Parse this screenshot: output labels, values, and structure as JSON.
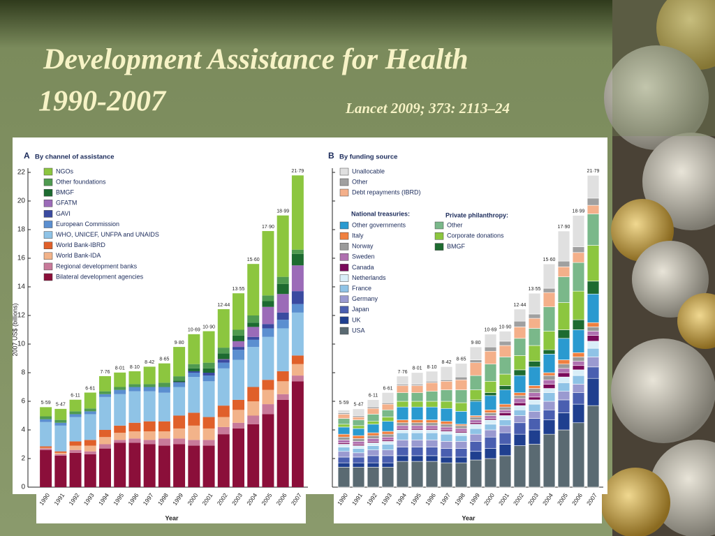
{
  "slide": {
    "title": "Development Assistance for Health",
    "years": "1990-2007",
    "citation": "Lancet 2009; 373: 2113–24"
  },
  "chart_data": [
    {
      "type": "stacked_bar",
      "panel": "A",
      "title": "By channel of assistance",
      "ylabel": "2007 US$ (billions)",
      "xlabel": "Year",
      "categories": [
        "1990",
        "1991",
        "1992",
        "1993",
        "1994",
        "1995",
        "1996",
        "1997",
        "1998",
        "1999",
        "2000",
        "2001",
        "2002",
        "2003",
        "2004",
        "2005",
        "2006",
        "2007"
      ],
      "ylim": [
        0,
        22
      ],
      "yticks": [
        0,
        2,
        4,
        6,
        8,
        10,
        12,
        14,
        16,
        18,
        20,
        22
      ],
      "ytick_labels": true,
      "totals": [
        5.59,
        5.47,
        6.11,
        6.61,
        7.76,
        8.01,
        8.1,
        8.42,
        8.65,
        9.8,
        10.69,
        10.9,
        12.44,
        13.55,
        15.6,
        17.9,
        18.99,
        21.79
      ],
      "total_labels": [
        "5·59",
        "5·47",
        "6·11",
        "6·61",
        "7·76",
        "8·01",
        "8·10",
        "8·42",
        "8·65",
        "9·80",
        "10·69",
        "10·90",
        "12·44",
        "13·55",
        "15·60",
        "17·90",
        "18·99",
        "21·79"
      ],
      "series": [
        {
          "name": "Bilateral development agencies",
          "color": "#8b0f3a",
          "values": [
            2.6,
            2.2,
            2.4,
            2.3,
            2.7,
            3.1,
            3.1,
            3.0,
            2.9,
            3.0,
            2.9,
            2.9,
            3.7,
            4.1,
            4.4,
            5.1,
            6.1,
            7.4
          ]
        },
        {
          "name": "Regional development banks",
          "color": "#c87a9a",
          "values": [
            0.1,
            0.1,
            0.2,
            0.2,
            0.3,
            0.2,
            0.3,
            0.3,
            0.5,
            0.4,
            0.4,
            0.4,
            0.5,
            0.4,
            0.6,
            0.7,
            0.4,
            0.4
          ]
        },
        {
          "name": "World Bank-IDA",
          "color": "#f2b38a",
          "values": [
            0.05,
            0.1,
            0.3,
            0.4,
            0.5,
            0.5,
            0.5,
            0.6,
            0.5,
            0.7,
            1.0,
            0.8,
            0.7,
            0.9,
            1.0,
            1.0,
            0.9,
            0.8
          ]
        },
        {
          "name": "World Bank-IBRD",
          "color": "#e0602a",
          "values": [
            0.1,
            0.1,
            0.3,
            0.4,
            0.5,
            0.5,
            0.6,
            0.7,
            0.7,
            0.9,
            0.9,
            0.8,
            0.8,
            0.7,
            1.0,
            0.7,
            0.7,
            0.6
          ]
        },
        {
          "name": "WHO, UNICEF, UNFPA and UNAIDS",
          "color": "#8fc3e6",
          "values": [
            1.7,
            1.8,
            1.7,
            1.8,
            2.3,
            2.2,
            2.2,
            2.1,
            2.0,
            2.0,
            2.5,
            2.5,
            2.6,
            2.8,
            2.8,
            3.0,
            3.0,
            3.0
          ]
        },
        {
          "name": "European Commission",
          "color": "#5b8fd0",
          "values": [
            0.2,
            0.2,
            0.2,
            0.2,
            0.2,
            0.3,
            0.3,
            0.3,
            0.4,
            0.3,
            0.3,
            0.4,
            0.4,
            0.7,
            0.5,
            0.6,
            0.6,
            0.6
          ]
        },
        {
          "name": "GAVI",
          "color": "#3a4aa0",
          "values": [
            0,
            0,
            0,
            0,
            0,
            0,
            0,
            0,
            0,
            0.05,
            0.1,
            0.2,
            0.2,
            0.2,
            0.2,
            0.3,
            0.5,
            0.9
          ]
        },
        {
          "name": "GFATM",
          "color": "#9b6bb8",
          "values": [
            0,
            0,
            0,
            0,
            0,
            0,
            0,
            0,
            0,
            0,
            0,
            0,
            0.05,
            0.4,
            0.7,
            1.2,
            1.3,
            1.8
          ]
        },
        {
          "name": "BMGF",
          "color": "#1d6b30",
          "values": [
            0,
            0,
            0,
            0,
            0,
            0,
            0,
            0,
            0,
            0.1,
            0.2,
            0.3,
            0.4,
            0.4,
            0.3,
            0.4,
            0.7,
            0.8
          ]
        },
        {
          "name": "Other foundations",
          "color": "#4f9a50",
          "values": [
            0.2,
            0.2,
            0.2,
            0.2,
            0.2,
            0.2,
            0.2,
            0.2,
            0.3,
            0.3,
            0.3,
            0.4,
            0.4,
            0.4,
            0.5,
            0.4,
            0.5,
            0.3
          ]
        },
        {
          "name": "NGOs",
          "color": "#8cc63f",
          "values": [
            0.64,
            0.77,
            0.81,
            1.11,
            1.06,
            1.01,
            0.9,
            1.22,
            1.35,
            2.05,
            2.09,
            2.2,
            2.69,
            2.55,
            3.6,
            4.5,
            4.29,
            5.19
          ]
        }
      ]
    },
    {
      "type": "stacked_bar",
      "panel": "B",
      "title": "By funding source",
      "xlabel": "Year",
      "categories": [
        "1990",
        "1991",
        "1992",
        "1993",
        "1994",
        "1995",
        "1996",
        "1997",
        "1998",
        "1999",
        "2000",
        "2001",
        "2002",
        "2003",
        "2004",
        "2005",
        "2006",
        "2007"
      ],
      "ylim": [
        0,
        22
      ],
      "yticks": [
        0,
        2,
        4,
        6,
        8,
        10,
        12,
        14,
        16,
        18,
        20,
        22
      ],
      "ytick_labels": false,
      "legend_titles": [
        "National treasuries:",
        "Private philanthropy:"
      ],
      "totals": [
        5.59,
        5.47,
        6.11,
        6.61,
        7.76,
        8.01,
        8.1,
        8.42,
        8.65,
        9.8,
        10.69,
        10.9,
        12.44,
        13.55,
        15.6,
        17.9,
        18.99,
        21.79
      ],
      "total_labels": [
        "5·59",
        "5·47",
        "6·11",
        "6·61",
        "7·76",
        "8·01",
        "8·10",
        "8·42",
        "8·65",
        "9·80",
        "10·69",
        "10·90",
        "12·44",
        "13·55",
        "15·60",
        "17·90",
        "18·99",
        "21·79"
      ],
      "series": [
        {
          "name": "USA",
          "color": "#5a6a72",
          "values": [
            1.4,
            1.4,
            1.4,
            1.4,
            1.8,
            1.8,
            1.8,
            1.7,
            1.7,
            1.9,
            2.0,
            2.2,
            2.9,
            3.0,
            3.7,
            4.0,
            4.5,
            5.7
          ]
        },
        {
          "name": "UK",
          "color": "#1f3f8f",
          "values": [
            0.3,
            0.3,
            0.3,
            0.3,
            0.4,
            0.4,
            0.4,
            0.4,
            0.4,
            0.6,
            0.7,
            0.8,
            0.8,
            1.0,
            1.0,
            1.2,
            1.3,
            1.9
          ]
        },
        {
          "name": "Japan",
          "color": "#4a5fb0",
          "values": [
            0.4,
            0.4,
            0.5,
            0.5,
            0.6,
            0.6,
            0.6,
            0.6,
            0.6,
            0.7,
            0.8,
            0.8,
            0.8,
            0.8,
            0.7,
            0.9,
            0.8,
            0.8
          ]
        },
        {
          "name": "Germany",
          "color": "#9a9ad0",
          "values": [
            0.4,
            0.3,
            0.4,
            0.4,
            0.5,
            0.5,
            0.5,
            0.5,
            0.5,
            0.5,
            0.5,
            0.5,
            0.5,
            0.5,
            0.6,
            0.6,
            0.6,
            0.7
          ]
        },
        {
          "name": "France",
          "color": "#8fc3e6",
          "values": [
            0.3,
            0.3,
            0.3,
            0.4,
            0.5,
            0.5,
            0.5,
            0.5,
            0.4,
            0.4,
            0.4,
            0.4,
            0.4,
            0.5,
            0.6,
            0.6,
            0.6,
            0.6
          ]
        },
        {
          "name": "Netherlands",
          "color": "#d9eef8",
          "values": [
            0.2,
            0.2,
            0.2,
            0.2,
            0.2,
            0.2,
            0.2,
            0.2,
            0.2,
            0.3,
            0.3,
            0.3,
            0.3,
            0.3,
            0.3,
            0.4,
            0.4,
            0.5
          ]
        },
        {
          "name": "Canada",
          "color": "#7a0a5a",
          "values": [
            0.1,
            0.1,
            0.1,
            0.1,
            0.1,
            0.1,
            0.1,
            0.1,
            0.1,
            0.1,
            0.1,
            0.2,
            0.2,
            0.2,
            0.3,
            0.3,
            0.3,
            0.4
          ]
        },
        {
          "name": "Sweden",
          "color": "#b070b0",
          "values": [
            0.2,
            0.2,
            0.2,
            0.2,
            0.2,
            0.2,
            0.2,
            0.2,
            0.2,
            0.2,
            0.2,
            0.2,
            0.3,
            0.3,
            0.3,
            0.3,
            0.3,
            0.3
          ]
        },
        {
          "name": "Norway",
          "color": "#9a9a9a",
          "values": [
            0.2,
            0.2,
            0.2,
            0.2,
            0.2,
            0.2,
            0.2,
            0.2,
            0.2,
            0.2,
            0.2,
            0.2,
            0.2,
            0.3,
            0.3,
            0.3,
            0.3,
            0.3
          ]
        },
        {
          "name": "Italy",
          "color": "#f08040",
          "values": [
            0.2,
            0.2,
            0.2,
            0.2,
            0.2,
            0.2,
            0.2,
            0.2,
            0.1,
            0.1,
            0.2,
            0.2,
            0.2,
            0.2,
            0.2,
            0.3,
            0.3,
            0.3
          ]
        },
        {
          "name": "Other governments",
          "color": "#2a9ad0",
          "values": [
            0.5,
            0.5,
            0.6,
            0.7,
            0.9,
            0.9,
            0.9,
            0.9,
            0.9,
            1.0,
            1.0,
            1.0,
            1.2,
            1.3,
            1.3,
            1.5,
            1.6,
            2.0
          ]
        },
        {
          "name": "BMGF",
          "color": "#1d6b30",
          "values": [
            0,
            0,
            0,
            0,
            0,
            0,
            0,
            0,
            0,
            0.1,
            0.2,
            0.3,
            0.4,
            0.4,
            0.3,
            0.6,
            0.7,
            0.9
          ]
        },
        {
          "name": "Corporate donations",
          "color": "#8cc63f",
          "values": [
            0.2,
            0.2,
            0.2,
            0.3,
            0.4,
            0.4,
            0.4,
            0.5,
            0.6,
            0.7,
            0.8,
            0.8,
            1.0,
            1.1,
            1.3,
            1.9,
            2.0,
            2.5
          ]
        },
        {
          "name": "Other",
          "color": "#7ab88a",
          "values": [
            0.4,
            0.4,
            0.5,
            0.5,
            0.6,
            0.6,
            0.7,
            0.8,
            0.9,
            1.0,
            1.2,
            1.2,
            1.2,
            1.2,
            1.7,
            1.8,
            2.0,
            2.2
          ]
        },
        {
          "name": "Debt repayments (IBRD)",
          "color": "#f4b08a",
          "values": [
            0.3,
            0.2,
            0.4,
            0.4,
            0.5,
            0.5,
            0.6,
            0.6,
            0.7,
            0.9,
            0.9,
            0.8,
            0.8,
            0.7,
            1.0,
            0.7,
            0.7,
            0.6
          ]
        },
        {
          "name": "Other",
          "color": "#a0a0a0",
          "values": [
            0.1,
            0.1,
            0.1,
            0.1,
            0.1,
            0.1,
            0.1,
            0.1,
            0.2,
            0.2,
            0.3,
            0.3,
            0.4,
            0.3,
            0.3,
            0.4,
            0.4,
            0.5
          ]
        },
        {
          "name": "Unallocable",
          "color": "#e0e0e0",
          "values": [
            0.19,
            0.47,
            0.51,
            0.71,
            0.56,
            0.81,
            0.7,
            0.92,
            0.95,
            0.9,
            0.89,
            0.7,
            0.84,
            1.45,
            1.7,
            2.1,
            2.19,
            1.59
          ]
        }
      ]
    }
  ]
}
